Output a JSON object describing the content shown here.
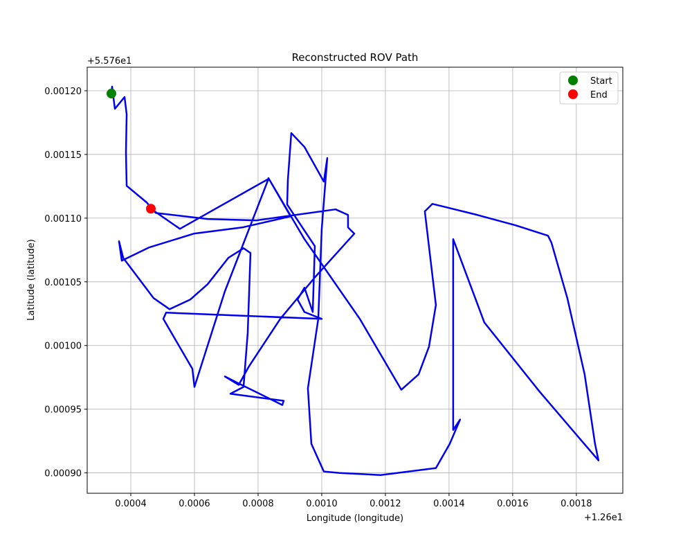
{
  "chart_data": {
    "type": "line",
    "title": "Reconstructed ROV Path",
    "xlabel": "Longitude (longitude)",
    "ylabel": "Latitude (latitude)",
    "x_offset": "+1.26e1",
    "y_offset": "+5.576e1",
    "xlim": [
      0.000263,
      0.001946
    ],
    "ylim": [
      0.000884,
      0.0012185
    ],
    "xticks": [
      0.0004,
      0.0006,
      0.0008,
      {
        "value": 0.001,
        "label": "0.0010"
      },
      0.0012,
      0.0014,
      0.0016,
      0.0018
    ],
    "yticks": [
      {
        "value": 0.0009,
        "label": "0.00090"
      },
      0.00095,
      {
        "value": 0.001,
        "label": "0.00100"
      },
      0.00105,
      {
        "value": 0.0011,
        "label": "0.00110"
      },
      0.00115,
      {
        "value": 0.0012,
        "label": "0.00120"
      }
    ],
    "grid": true,
    "legend": "upper right",
    "path": {
      "color": "#0000ee",
      "x": [
        0.0003391,
        0.0003413,
        0.00035,
        0.0003804,
        0.000387,
        0.0003848,
        0.000387,
        0.00045,
        0.0004783,
        0.0006413,
        0.0007935,
        0.0010435,
        0.0010826,
        0.0010826,
        0.0011022,
        0.0009783,
        0.0008696,
        0.0007717,
        0.0007391,
        0.0006957,
        0.0007391,
        0.0008761,
        0.0008804,
        0.000713,
        0.0007543,
        0.0007674,
        0.0007761,
        0.0007543,
        0.0007065,
        0.0006413,
        0.000587,
        0.0005217,
        0.0004717,
        0.0003761,
        0.000363,
        0.0003717,
        0.0004565,
        0.0005978,
        0.00075,
        0.0009022,
        0.0008326,
        0.0009457,
        0.0011196,
        0.00125,
        0.0013043,
        0.001337,
        0.0013587,
        0.0013239,
        0.0013478,
        0.0014891,
        0.0016087,
        0.0017109,
        0.0017217,
        0.0017717,
        0.0018261,
        0.0018587,
        0.0018696,
        0.0018152,
        0.0016848,
        0.0015109,
        0.001413,
        0.001413,
        0.0014348,
        0.0014022,
        0.0013587,
        0.0011848,
        0.0010543,
        0.0010065,
        0.0009674,
        0.0009565,
        0.0009891,
        0.001,
        0.0010174,
        0.0010065,
        0.0009457,
        0.0009043,
        0.0008935,
        0.0008913,
        0.0009783,
        0.0009717,
        0.0009457,
        0.0009239,
        0.0009457,
        0.001,
        0.0005109,
        0.0005022,
        0.0005935,
        0.0006,
        0.0006957,
        0.0008326,
        0.0005543,
        0.000463
      ],
      "y": [
        0.0011978,
        0.0012033,
        0.0011858,
        0.0011951,
        0.0011815,
        0.0011515,
        0.0011254,
        0.0011123,
        0.0011041,
        0.0010993,
        0.0010982,
        0.0011069,
        0.0011025,
        0.0010927,
        0.0010878,
        0.0010535,
        0.0010209,
        0.0009838,
        0.0009691,
        0.0009757,
        0.0009702,
        0.0009533,
        0.0009566,
        0.0009621,
        0.0009675,
        0.00101,
        0.0010726,
        0.0010764,
        0.0010688,
        0.0010481,
        0.0010361,
        0.0010285,
        0.0010372,
        0.0010688,
        0.0010818,
        0.0010666,
        0.0010769,
        0.0010878,
        0.0010927,
        0.0011014,
        0.0011314,
        0.0010835,
        0.0010209,
        0.0009653,
        0.0009773,
        0.0009991,
        0.0010318,
        0.0011053,
        0.0011112,
        0.0011025,
        0.0010944,
        0.0010862,
        0.0010808,
        0.0010372,
        0.0009773,
        0.0009228,
        0.0009098,
        0.0009256,
        0.0009637,
        0.0010181,
        0.0010835,
        0.0009337,
        0.0009419,
        0.0009228,
        0.0009038,
        0.0008983,
        0.0009,
        0.0009011,
        0.0009228,
        0.0009664,
        0.0010209,
        0.0010916,
        0.0011472,
        0.0011287,
        0.0011559,
        0.0011668,
        0.0011298,
        0.0011107,
        0.001078,
        0.0010263,
        0.0010454,
        0.0010361,
        0.0010263,
        0.0010209,
        0.0010258,
        0.0010209,
        0.0009817,
        0.0009675,
        0.0010426,
        0.0011308,
        0.0010916,
        0.0011074
      ]
    },
    "markers": [
      {
        "name": "Start",
        "color": "green",
        "x": 0.0003391,
        "y": 0.0011978
      },
      {
        "name": "End",
        "color": "red",
        "x": 0.000463,
        "y": 0.0011074
      }
    ]
  }
}
